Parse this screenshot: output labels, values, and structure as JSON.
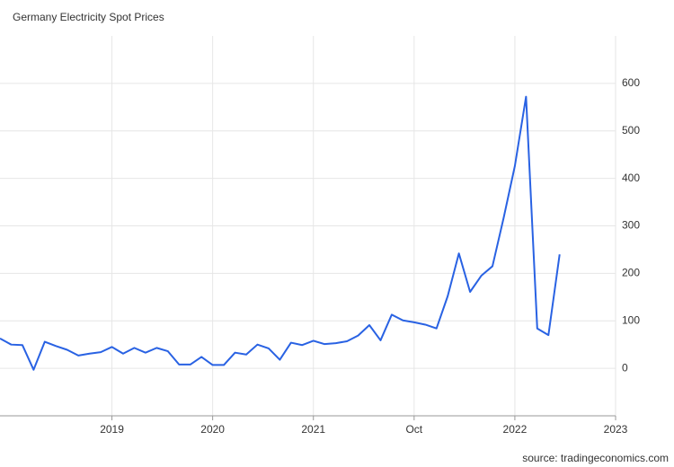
{
  "chart_data": {
    "type": "line",
    "title": "Germany Electricity Spot Prices",
    "source": "source: tradingeconomics.com",
    "x": [
      0,
      1,
      2,
      3,
      4,
      5,
      6,
      7,
      8,
      9,
      10,
      11,
      12,
      13,
      14,
      15,
      16,
      17,
      18,
      19,
      20,
      21,
      22,
      23,
      24,
      25,
      26,
      27,
      28,
      29,
      30,
      31,
      32,
      33,
      34,
      35,
      36,
      37,
      38,
      39,
      40,
      41,
      42,
      43,
      44,
      45,
      46,
      47,
      48,
      49,
      50
    ],
    "series": [
      {
        "name": "Germany Electricity Spot Prices",
        "color": "#2962e3",
        "values": [
          63,
          50,
          49,
          -3,
          56,
          47,
          39,
          27,
          31,
          34,
          45,
          31,
          43,
          33,
          43,
          36,
          8,
          8,
          24,
          7,
          7,
          33,
          29,
          50,
          42,
          18,
          54,
          49,
          58,
          51,
          53,
          57,
          69,
          91,
          59,
          113,
          101,
          97,
          92,
          84,
          152,
          242,
          161,
          195,
          215,
          317,
          426,
          572,
          84,
          70,
          240
        ]
      }
    ],
    "xlim": [
      0,
      55
    ],
    "xticks": [
      {
        "value": 10,
        "label": "2019"
      },
      {
        "value": 19,
        "label": "2020"
      },
      {
        "value": 28,
        "label": "2021"
      },
      {
        "value": 37,
        "label": "Oct"
      },
      {
        "value": 46,
        "label": "2022"
      },
      {
        "value": 55,
        "label": "2023"
      }
    ],
    "ylim": [
      -100,
      700
    ],
    "yticks": [
      0,
      100,
      200,
      300,
      400,
      500,
      600
    ],
    "grid": true
  }
}
